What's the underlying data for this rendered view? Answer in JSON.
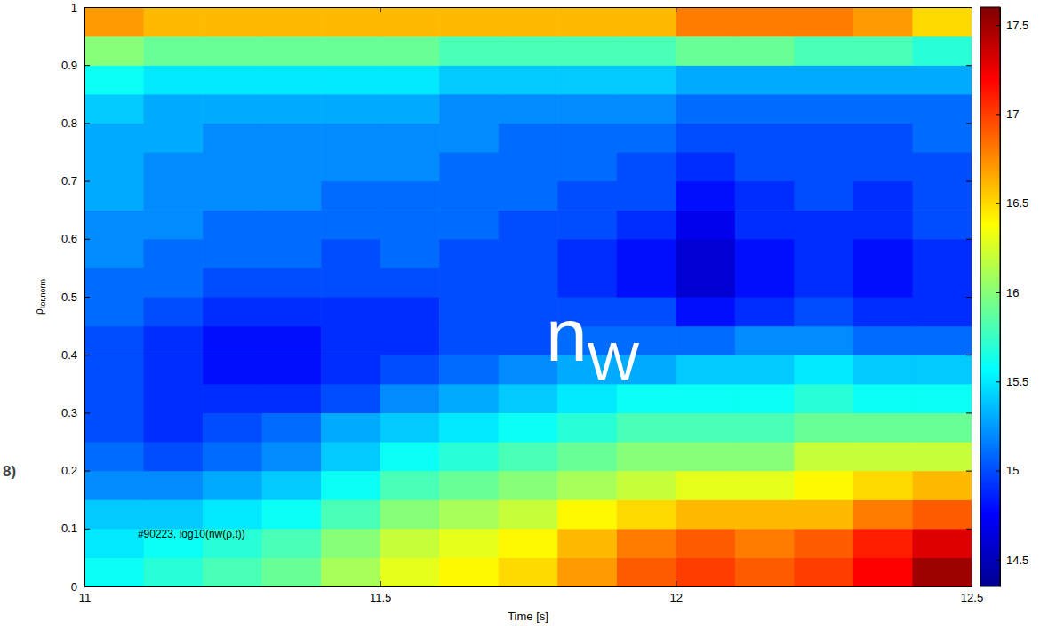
{
  "chart_data": {
    "type": "heatmap",
    "xlabel": "Time [s]",
    "ylabel": "ρtor,norm",
    "annotations": [
      "#90223, log10(nw(ρ,t))",
      "nW",
      "8)"
    ],
    "xlim": [
      11,
      12.5
    ],
    "ylim": [
      0,
      1
    ],
    "xticks": [
      11,
      11.5,
      12,
      12.5
    ],
    "yticks": [
      0,
      0.1,
      0.2,
      0.3,
      0.4,
      0.5,
      0.6,
      0.7,
      0.8,
      0.9,
      1
    ],
    "x": [
      11.05,
      11.15,
      11.25,
      11.35,
      11.45,
      11.55,
      11.65,
      11.75,
      11.85,
      11.95,
      12.05,
      12.15,
      12.25,
      12.35,
      12.45
    ],
    "y": [
      0.025,
      0.075,
      0.125,
      0.175,
      0.225,
      0.275,
      0.325,
      0.375,
      0.425,
      0.475,
      0.525,
      0.575,
      0.625,
      0.675,
      0.725,
      0.775,
      0.825,
      0.875,
      0.925,
      0.975
    ],
    "values": [
      [
        15.6,
        15.7,
        15.8,
        15.9,
        16.1,
        16.3,
        16.4,
        16.5,
        16.7,
        16.9,
        17.0,
        16.9,
        17.0,
        17.2,
        17.5
      ],
      [
        15.5,
        15.6,
        15.7,
        15.8,
        16.0,
        16.2,
        16.3,
        16.4,
        16.6,
        16.8,
        16.9,
        16.8,
        16.9,
        17.1,
        17.3
      ],
      [
        15.4,
        15.4,
        15.5,
        15.6,
        15.8,
        16.0,
        16.1,
        16.2,
        16.4,
        16.5,
        16.6,
        16.6,
        16.6,
        16.8,
        16.9
      ],
      [
        15.2,
        15.2,
        15.3,
        15.4,
        15.6,
        15.8,
        15.9,
        16.0,
        16.1,
        16.2,
        16.3,
        16.3,
        16.4,
        16.5,
        16.6
      ],
      [
        15.1,
        15.0,
        15.1,
        15.2,
        15.4,
        15.6,
        15.7,
        15.8,
        15.9,
        16.0,
        16.0,
        16.0,
        16.2,
        16.2,
        16.2
      ],
      [
        15.0,
        14.9,
        15.0,
        15.1,
        15.3,
        15.4,
        15.5,
        15.6,
        15.7,
        15.8,
        15.8,
        15.8,
        15.9,
        15.9,
        15.9
      ],
      [
        15.0,
        14.9,
        14.9,
        14.9,
        15.0,
        15.2,
        15.3,
        15.4,
        15.5,
        15.6,
        15.6,
        15.6,
        15.7,
        15.6,
        15.6
      ],
      [
        15.0,
        14.9,
        14.8,
        14.8,
        14.9,
        15.0,
        15.1,
        15.2,
        15.3,
        15.3,
        15.4,
        15.4,
        15.5,
        15.4,
        15.4
      ],
      [
        15.0,
        14.9,
        14.8,
        14.8,
        14.9,
        14.9,
        15.0,
        15.0,
        15.1,
        15.1,
        15.1,
        15.2,
        15.2,
        15.1,
        15.1
      ],
      [
        15.1,
        15.0,
        14.9,
        14.9,
        14.9,
        14.9,
        15.0,
        15.0,
        15.0,
        15.0,
        14.8,
        14.9,
        15.0,
        14.9,
        14.9
      ],
      [
        15.1,
        15.1,
        15.0,
        15.0,
        15.0,
        15.0,
        15.0,
        15.0,
        14.9,
        14.8,
        14.6,
        14.8,
        14.9,
        14.8,
        14.9
      ],
      [
        15.2,
        15.1,
        15.1,
        15.1,
        15.0,
        15.1,
        15.0,
        15.0,
        14.9,
        14.8,
        14.6,
        14.8,
        14.9,
        14.8,
        14.9
      ],
      [
        15.2,
        15.2,
        15.1,
        15.1,
        15.1,
        15.1,
        15.1,
        15.0,
        15.0,
        14.9,
        14.7,
        14.9,
        14.9,
        14.9,
        15.0
      ],
      [
        15.3,
        15.2,
        15.2,
        15.2,
        15.1,
        15.1,
        15.1,
        15.1,
        15.0,
        15.0,
        14.8,
        14.9,
        15.0,
        14.9,
        15.0
      ],
      [
        15.3,
        15.2,
        15.2,
        15.2,
        15.2,
        15.2,
        15.1,
        15.1,
        15.1,
        15.0,
        14.9,
        15.0,
        15.0,
        15.0,
        15.0
      ],
      [
        15.3,
        15.3,
        15.2,
        15.2,
        15.2,
        15.2,
        15.2,
        15.1,
        15.1,
        15.1,
        15.0,
        15.0,
        15.0,
        15.0,
        15.1
      ],
      [
        15.4,
        15.3,
        15.3,
        15.3,
        15.3,
        15.3,
        15.2,
        15.2,
        15.2,
        15.2,
        15.1,
        15.1,
        15.1,
        15.1,
        15.1
      ],
      [
        15.6,
        15.5,
        15.5,
        15.5,
        15.5,
        15.5,
        15.4,
        15.4,
        15.4,
        15.4,
        15.3,
        15.3,
        15.3,
        15.3,
        15.3
      ],
      [
        16.0,
        15.9,
        15.9,
        15.9,
        15.9,
        15.9,
        15.8,
        15.8,
        15.8,
        15.8,
        15.9,
        15.9,
        15.8,
        15.8,
        15.7
      ],
      [
        16.7,
        16.6,
        16.6,
        16.6,
        16.6,
        16.6,
        16.6,
        16.6,
        16.6,
        16.6,
        16.8,
        16.8,
        16.8,
        16.7,
        16.5
      ]
    ],
    "colorbar": {
      "range": [
        14.35,
        17.6
      ],
      "ticks": [
        14.5,
        15,
        15.5,
        16,
        16.5,
        17,
        17.5
      ]
    }
  }
}
